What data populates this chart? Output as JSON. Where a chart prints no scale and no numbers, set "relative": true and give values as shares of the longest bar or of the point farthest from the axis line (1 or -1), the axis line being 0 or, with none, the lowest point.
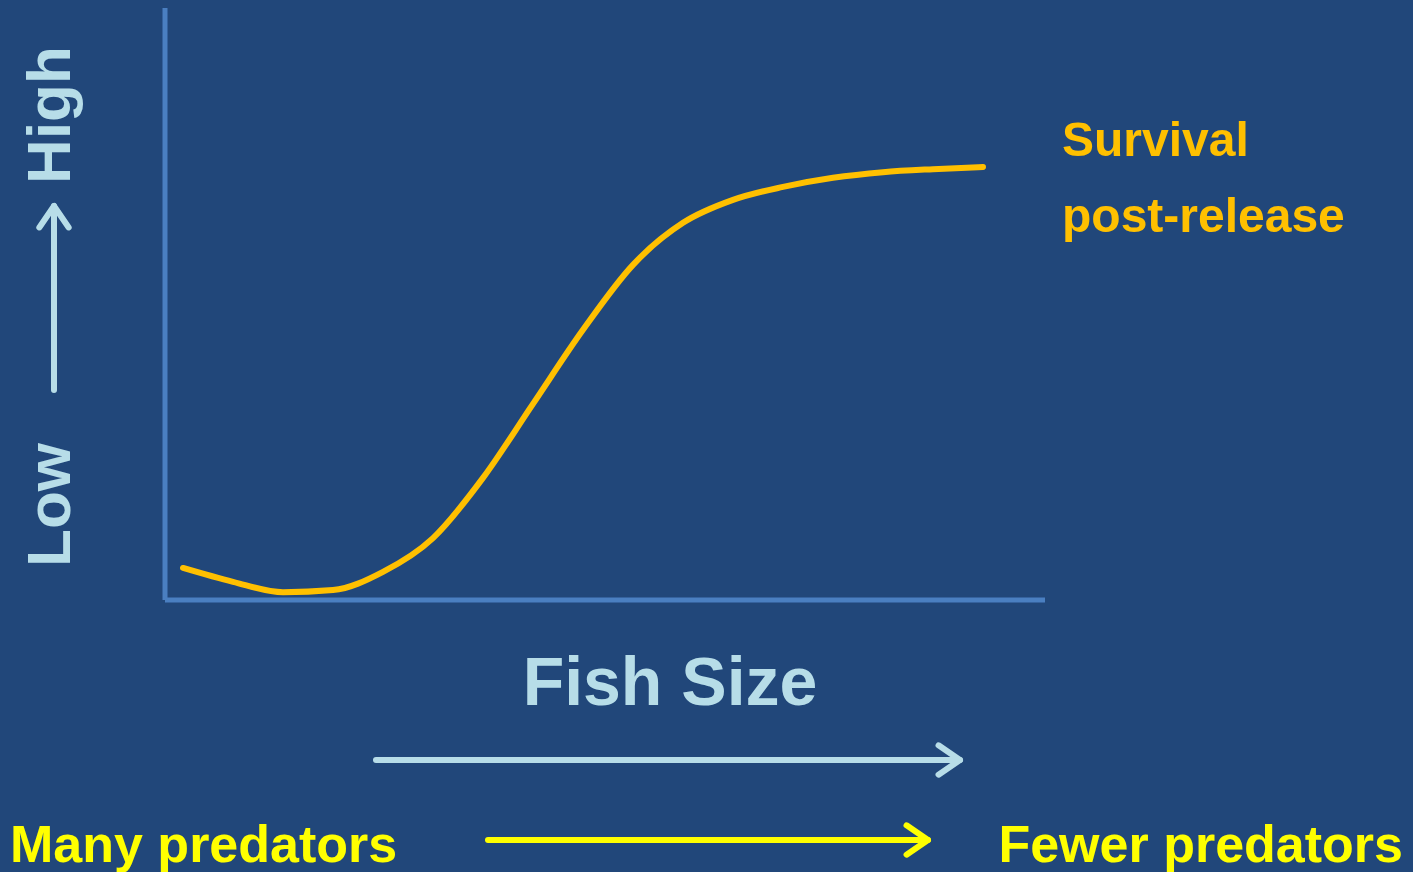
{
  "chart_data": {
    "type": "line",
    "relative": true,
    "xlabel": "Fish Size",
    "categories": [
      null,
      null,
      null,
      null,
      null,
      null,
      null,
      null,
      null,
      null,
      null,
      null,
      null,
      null,
      null,
      null,
      null
    ],
    "series": [
      {
        "name": "Survival post-release",
        "color": "#ffc000",
        "values": [
          0.074,
          0.042,
          0.018,
          0.023,
          0.065,
          0.143,
          0.282,
          0.453,
          0.624,
          0.774,
          0.871,
          0.924,
          0.954,
          0.975,
          0.988,
          0.995,
          1
        ]
      }
    ],
    "annotations": [
      "Low",
      "High",
      "Many predators",
      "Fewer predators"
    ]
  }
}
